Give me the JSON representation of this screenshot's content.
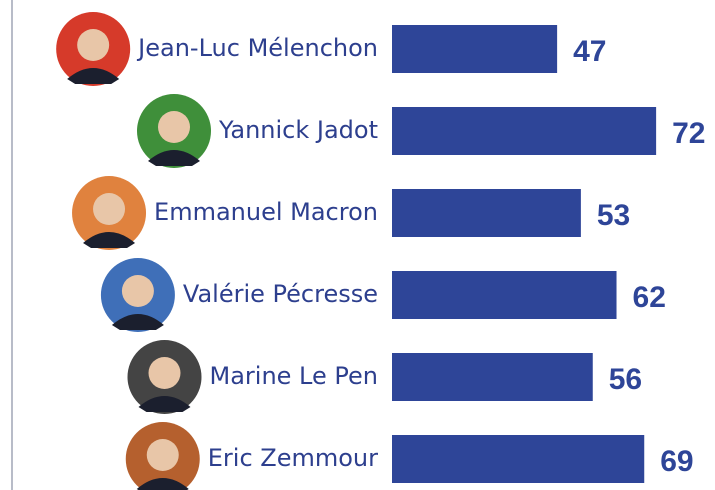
{
  "chart_data": {
    "type": "bar",
    "orientation": "horizontal",
    "categories": [
      "Jean-Luc Mélenchon",
      "Yannick Jadot",
      "Emmanuel Macron",
      "Valérie Pécresse",
      "Marine Le Pen",
      "Eric Zemmour"
    ],
    "values": [
      47,
      72,
      53,
      62,
      56,
      69
    ],
    "color": "#2e4598"
  }
}
